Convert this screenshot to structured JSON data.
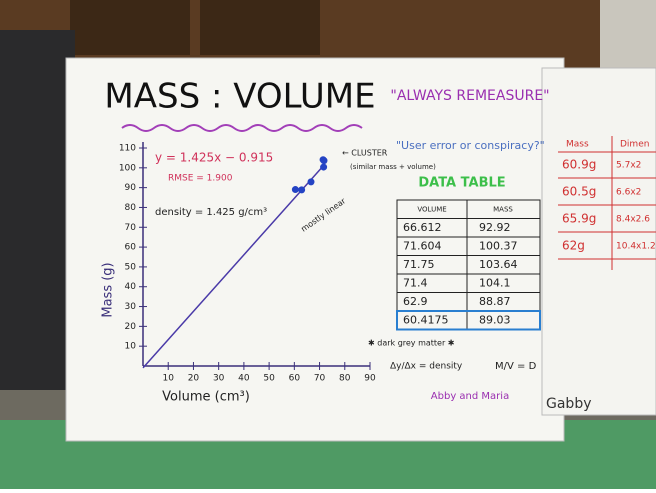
{
  "chart_data": {
    "type": "scatter",
    "title": "MASS : VOLUME",
    "subtitle": "\"ALWAYS REMEASURE\"",
    "x_label": "Volume (cm³)",
    "y_label": "Mass (g)",
    "x": [
      66.612,
      71.604,
      71.75,
      71.4,
      62.9,
      60.4175
    ],
    "values": [
      92.92,
      100.37,
      103.64,
      104.1,
      88.87,
      89.03
    ],
    "color": "#2443c4",
    "fit": {
      "slope": 1.425,
      "intercept": -0.915,
      "color": "#4a3aa8"
    },
    "xlim": [
      0,
      90
    ],
    "xticks": [
      10,
      20,
      30,
      40,
      50,
      60,
      70,
      80,
      90
    ],
    "ylim": [
      0,
      110
    ],
    "yticks": [
      10,
      20,
      30,
      40,
      50,
      60,
      70,
      80,
      90,
      100,
      110
    ],
    "annotations": {
      "equation": "y = 1.425x − 0.915",
      "rmse": "RMSE = 1.900",
      "density": "density = 1.425 g/cm³",
      "cluster": "← CLUSTER",
      "cluster_note": "(similar mass + volume)",
      "linear": "mostly linear",
      "question": "\"User error or conspiracy?\""
    }
  },
  "table": {
    "title": "DATA TABLE",
    "headers": [
      "VOLUME",
      "MASS"
    ]
  },
  "notes": {
    "matter": "✱ dark grey matter ✱",
    "slope": "Δy/Δx = density",
    "ratio": "M/V = D",
    "authors": "Abby and Maria"
  },
  "side_board": {
    "headers": [
      "Mass",
      "Dimen"
    ],
    "rows": [
      [
        "60.9g",
        "5.7x2"
      ],
      [
        "60.5g",
        "6.6x2"
      ],
      [
        "65.9g",
        "8.4x2.6"
      ],
      [
        "62g",
        "10.4x1.2"
      ]
    ],
    "author": "Gabby"
  }
}
